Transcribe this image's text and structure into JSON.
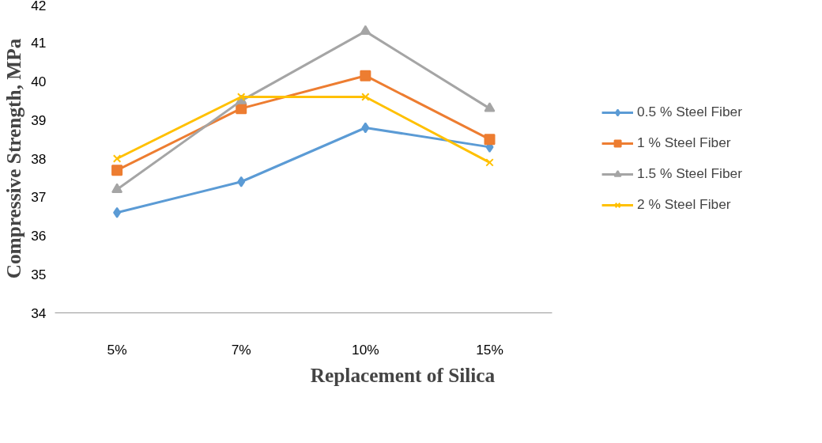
{
  "chart_data": {
    "type": "line",
    "xlabel": "Replacement of Silica",
    "ylabel": "Compressive Strength, MPa",
    "categories": [
      "5%",
      "7%",
      "10%",
      "15%"
    ],
    "ylim": [
      34,
      42
    ],
    "yticks": [
      34,
      35,
      36,
      37,
      38,
      39,
      40,
      41,
      42
    ],
    "grid": false,
    "legend": "right",
    "series": [
      {
        "name": "0.5 % Steel Fiber",
        "color": "#5b9bd5",
        "marker": "diamond",
        "values": [
          36.6,
          37.4,
          38.8,
          38.3
        ]
      },
      {
        "name": "1 % Steel Fiber",
        "color": "#ed7d31",
        "marker": "square",
        "values": [
          37.7,
          39.3,
          40.15,
          38.5
        ]
      },
      {
        "name": "1.5 % Steel Fiber",
        "color": "#a5a5a5",
        "marker": "triangle",
        "values": [
          37.2,
          39.5,
          41.3,
          39.3
        ]
      },
      {
        "name": "2 % Steel Fiber",
        "color": "#ffc000",
        "marker": "cross",
        "values": [
          38.0,
          39.6,
          39.6,
          37.9
        ]
      }
    ]
  }
}
